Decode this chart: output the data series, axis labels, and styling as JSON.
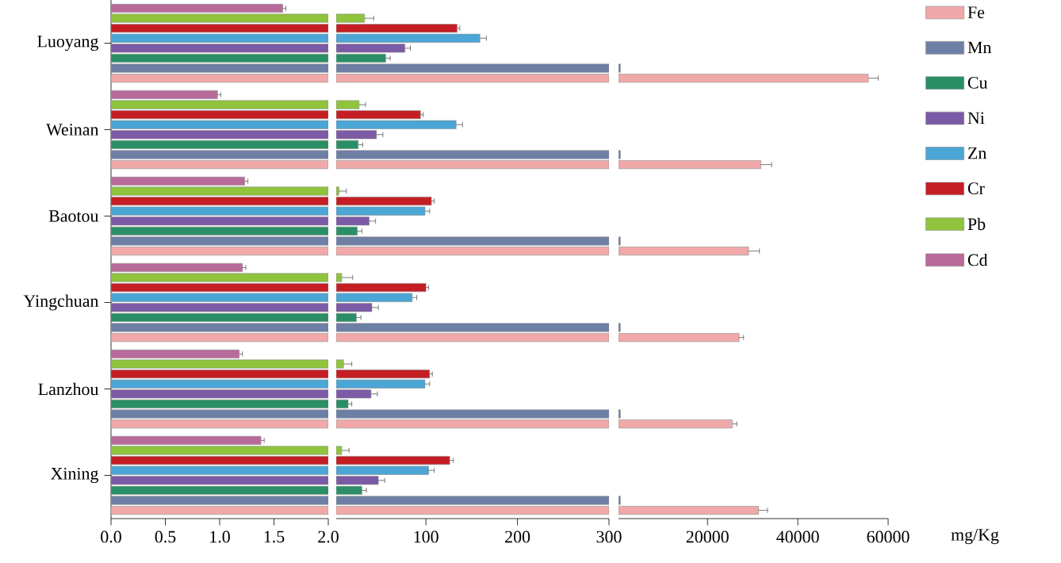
{
  "chart_data": [
    {
      "type": "bar",
      "orientation": "horizontal",
      "categories": [
        "Luoyang",
        "Weinan",
        "Baotou",
        "Yingchuan",
        "Lanzhou",
        "Xining"
      ],
      "series": [
        {
          "color": "#f0a8a8",
          "values": [
            2,
            2,
            2,
            2,
            2,
            2
          ]
        },
        {
          "color": "#6e7fa6",
          "values": [
            2,
            2,
            2,
            2,
            2,
            2
          ]
        },
        {
          "color": "#2a8f66",
          "values": [
            2,
            2,
            2,
            2,
            2,
            2
          ]
        },
        {
          "color": "#7b5aa6",
          "values": [
            2,
            2,
            2,
            2,
            2,
            2
          ]
        },
        {
          "color": "#4ba6d6",
          "values": [
            2,
            2,
            2,
            2,
            2,
            2
          ]
        },
        {
          "color": "#c41e24",
          "values": [
            2,
            2,
            2,
            2,
            2,
            2
          ]
        },
        {
          "color": "#8fc43c",
          "values": [
            2,
            2,
            2,
            2,
            2,
            2
          ]
        },
        {
          "color": "#b86a9a",
          "values": [
            1.58,
            0.98,
            1.23,
            1.21,
            1.18,
            1.38
          ],
          "errors": [
            0.03,
            0.03,
            0.03,
            0.03,
            0.03,
            0.03
          ]
        }
      ],
      "xlim": [
        0,
        2
      ],
      "xticks": [
        {
          "value": 0,
          "label": "0.0"
        },
        0.5,
        {
          "value": 1,
          "label": "1.0"
        },
        1.5,
        {
          "value": 2,
          "label": "2.0"
        }
      ]
    },
    {
      "type": "bar",
      "orientation": "horizontal",
      "categories": [
        null,
        null,
        null,
        null,
        null,
        null
      ],
      "series": [
        {
          "color": "#f0a8a8",
          "values": [
            300,
            300,
            300,
            300,
            300,
            300
          ]
        },
        {
          "color": "#6e7fa6",
          "values": [
            300,
            300,
            300,
            300,
            300,
            300
          ]
        },
        {
          "color": "#2a8f66",
          "values": [
            56,
            26,
            25,
            24,
            15,
            30
          ],
          "errors": [
            5,
            5,
            5,
            5,
            4,
            5
          ]
        },
        {
          "color": "#7b5aa6",
          "values": [
            77,
            46,
            38,
            41,
            40,
            48
          ],
          "errors": [
            6,
            7,
            7,
            7,
            7,
            7
          ]
        },
        {
          "color": "#4ba6d6",
          "values": [
            159,
            133,
            99,
            85,
            99,
            103
          ],
          "errors": [
            7,
            7,
            5,
            5,
            5,
            6
          ]
        },
        {
          "color": "#c41e24",
          "values": [
            134,
            94,
            106,
            100,
            104,
            126
          ],
          "errors": [
            3,
            3,
            3,
            3,
            3,
            4
          ]
        },
        {
          "color": "#8fc43c",
          "values": [
            33,
            27,
            5,
            8,
            10,
            8
          ],
          "errors": [
            10,
            7,
            8,
            12,
            9,
            8
          ]
        },
        {
          "color": "#b86a9a",
          "values": [
            null,
            null,
            null,
            null,
            null,
            null
          ]
        }
      ],
      "xlim": [
        2,
        300
      ],
      "xticks": [
        100,
        200,
        300
      ],
      "tick_labels": "x"
    },
    {
      "type": "bar",
      "orientation": "horizontal",
      "categories": [
        null,
        null,
        null,
        null,
        null,
        null
      ],
      "series": [
        {
          "name": "Fe",
          "color": "#f0a8a8",
          "values": [
            55600,
            31800,
            29100,
            27000,
            25500,
            31300
          ],
          "errors": [
            2200,
            2400,
            2400,
            1000,
            1000,
            2000
          ]
        },
        {
          "name": "Mn",
          "color": "#6e7fa6",
          "values": [
            700,
            700,
            700,
            700,
            700,
            700
          ]
        },
        {
          "name": "Cu",
          "color": "#2a8f66",
          "values": [
            null,
            null,
            null,
            null,
            null,
            null
          ]
        },
        {
          "name": "Ni",
          "color": "#7b5aa6",
          "values": [
            null,
            null,
            null,
            null,
            null,
            null
          ]
        },
        {
          "name": "Zn",
          "color": "#4ba6d6",
          "values": [
            null,
            null,
            null,
            null,
            null,
            null
          ]
        },
        {
          "name": "Cr",
          "color": "#c41e24",
          "values": [
            null,
            null,
            null,
            null,
            null,
            null
          ]
        },
        {
          "name": "Pb",
          "color": "#8fc43c",
          "values": [
            null,
            null,
            null,
            null,
            null,
            null
          ]
        },
        {
          "name": "Cd",
          "color": "#b86a9a",
          "values": [
            null,
            null,
            null,
            null,
            null,
            null
          ]
        }
      ],
      "xlim": [
        300,
        60000
      ],
      "xticks": [
        20000,
        40000,
        60000
      ],
      "tick_labels": "x",
      "xlabel": "mg/Kg",
      "legend": "right"
    }
  ]
}
